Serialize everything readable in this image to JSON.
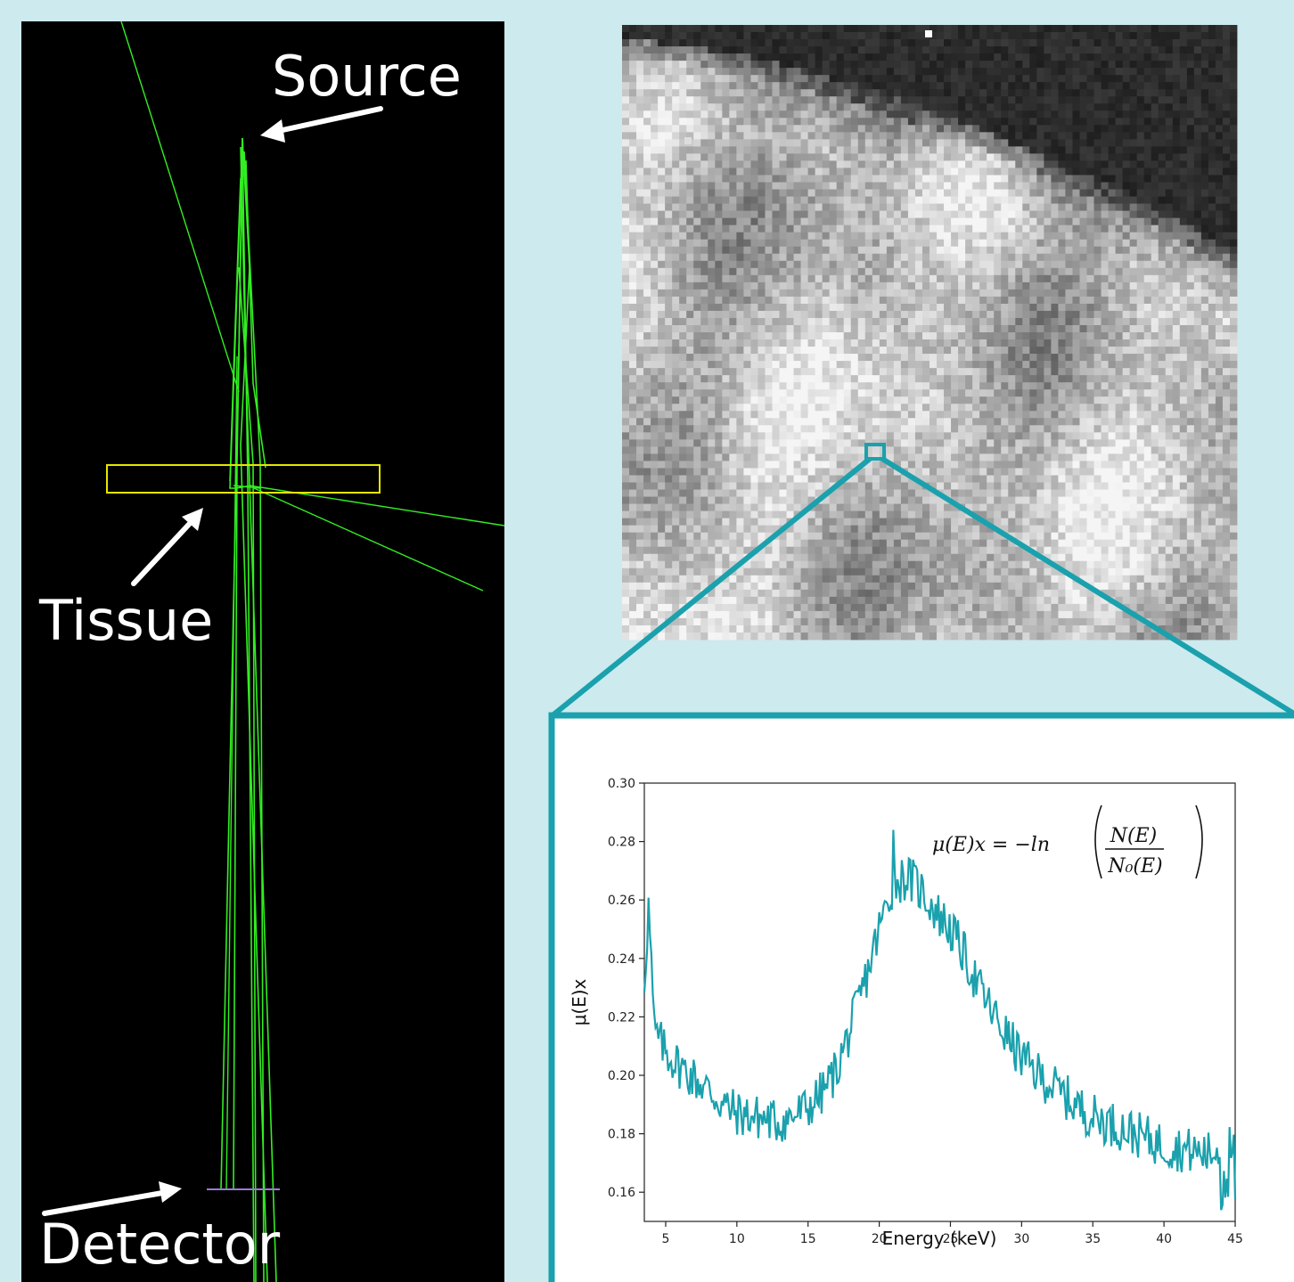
{
  "labels": {
    "source": "Source",
    "tissue": "Tissue",
    "detector": "Detector"
  },
  "colors": {
    "background": "#cdeaee",
    "sim_background": "#000000",
    "tracks": "#33ee22",
    "tissue_box": "#e6e600",
    "detector_bar": "#9a7ad8",
    "frame": "#1aa1ad",
    "series": "#1aa1ad"
  },
  "equation": {
    "lhs": "μ(E)x = −ln",
    "numerator": "N(E)",
    "denominator": "N₀(E)"
  },
  "chart_data": {
    "type": "line",
    "xlabel": "Energy (keV)",
    "ylabel": "μ(E)x",
    "xlim": [
      3.5,
      45
    ],
    "ylim": [
      0.15,
      0.3
    ],
    "xticks": [
      5,
      10,
      15,
      20,
      25,
      30,
      35,
      40,
      45
    ],
    "yticks": [
      0.16,
      0.18,
      0.2,
      0.22,
      0.24,
      0.26,
      0.28,
      0.3
    ],
    "anchors": [
      [
        3.5,
        0.232
      ],
      [
        3.8,
        0.258
      ],
      [
        4.2,
        0.215
      ],
      [
        5,
        0.208
      ],
      [
        6,
        0.203
      ],
      [
        7,
        0.199
      ],
      [
        8,
        0.195
      ],
      [
        9,
        0.19
      ],
      [
        10,
        0.187
      ],
      [
        11,
        0.186
      ],
      [
        12,
        0.185
      ],
      [
        13,
        0.184
      ],
      [
        14,
        0.186
      ],
      [
        15,
        0.189
      ],
      [
        16,
        0.194
      ],
      [
        17,
        0.202
      ],
      [
        18,
        0.216
      ],
      [
        19,
        0.232
      ],
      [
        20,
        0.25
      ],
      [
        21,
        0.266
      ],
      [
        22,
        0.268
      ],
      [
        23,
        0.263
      ],
      [
        24,
        0.256
      ],
      [
        25,
        0.25
      ],
      [
        26,
        0.241
      ],
      [
        27,
        0.23
      ],
      [
        28,
        0.221
      ],
      [
        29,
        0.213
      ],
      [
        30,
        0.206
      ],
      [
        31,
        0.201
      ],
      [
        32,
        0.197
      ],
      [
        33,
        0.193
      ],
      [
        34,
        0.189
      ],
      [
        35,
        0.186
      ],
      [
        36,
        0.184
      ],
      [
        37,
        0.182
      ],
      [
        38,
        0.18
      ],
      [
        39,
        0.178
      ],
      [
        40,
        0.176
      ],
      [
        41,
        0.175
      ],
      [
        42,
        0.174
      ],
      [
        43,
        0.173
      ],
      [
        44,
        0.174
      ],
      [
        45,
        0.178
      ]
    ],
    "noise_amplitude": 0.008,
    "peak": [
      21,
      0.284
    ],
    "samples": 420
  }
}
